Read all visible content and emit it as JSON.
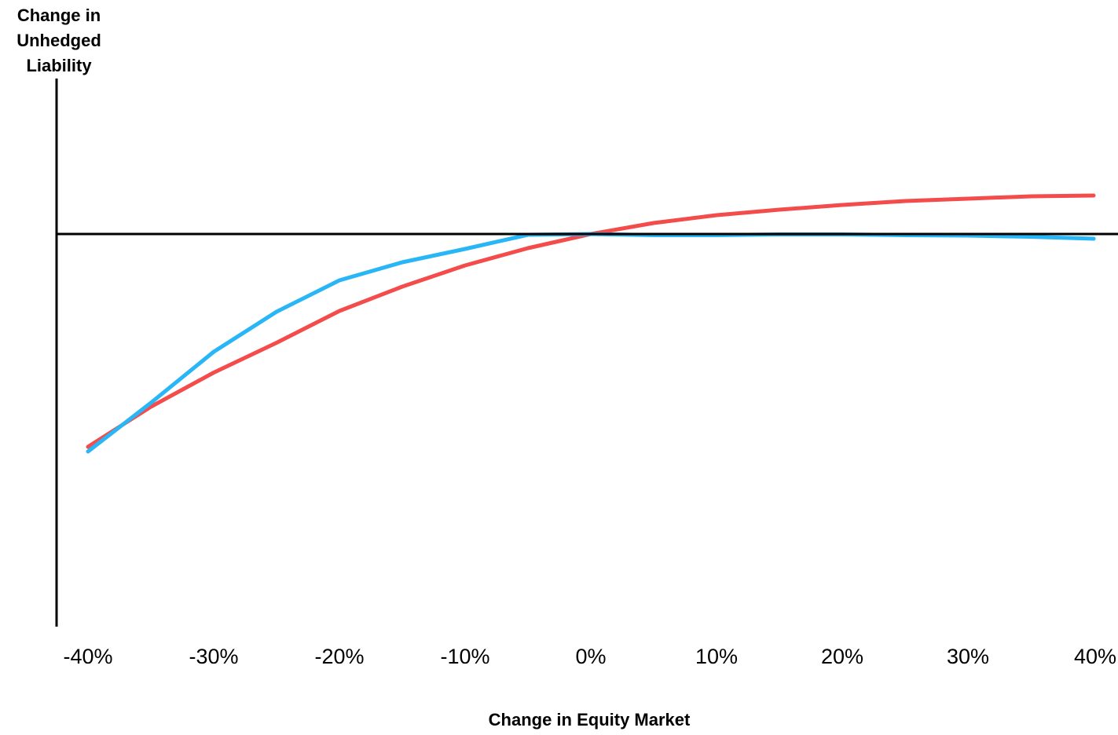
{
  "chart_data": {
    "type": "line",
    "title": "",
    "ylabel_lines": [
      "Change in",
      "Unhedged",
      "Liability"
    ],
    "xlabel": "Change in Equity Market",
    "x_tick_labels": [
      "-40%",
      "-30%",
      "-20%",
      "-10%",
      "0%",
      "10%",
      "20%",
      "30%",
      "40%"
    ],
    "xlim": [
      -40,
      40
    ],
    "ylim": [
      -1.0,
      0.4
    ],
    "grid": false,
    "legend": "none",
    "series": [
      {
        "color": "#F44B4B",
        "x": [
          -40,
          -35,
          -30,
          -25,
          -20,
          -15,
          -10,
          -5,
          0,
          5,
          10,
          15,
          20,
          25,
          30,
          35,
          40
        ],
        "y": [
          -0.542,
          -0.44,
          -0.353,
          -0.277,
          -0.196,
          -0.134,
          -0.08,
          -0.036,
          0.0,
          0.028,
          0.048,
          0.062,
          0.074,
          0.084,
          0.09,
          0.096,
          0.098
        ]
      },
      {
        "color": "#29B6F6",
        "x": [
          -40,
          -35,
          -30,
          -25,
          -20,
          -15,
          -10,
          -5,
          0,
          5,
          10,
          15,
          20,
          25,
          30,
          35,
          40
        ],
        "y": [
          -0.554,
          -0.43,
          -0.3,
          -0.198,
          -0.118,
          -0.072,
          -0.038,
          -0.002,
          0.0,
          -0.003,
          -0.003,
          -0.001,
          -0.001,
          -0.003,
          -0.004,
          -0.007,
          -0.012
        ]
      }
    ]
  }
}
